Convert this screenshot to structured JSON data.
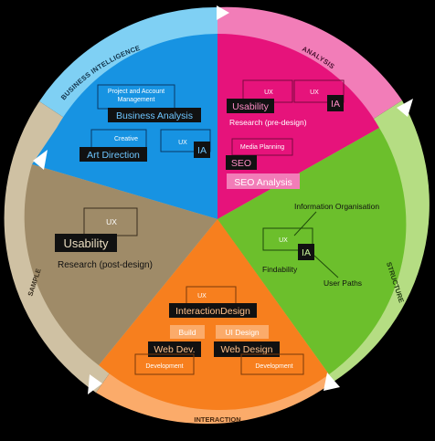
{
  "colors": {
    "business_intelligence": "#1793e2",
    "analysis": "#e6137b",
    "structure": "#6cbf2c",
    "interaction": "#f77f1e",
    "sample": "#9f8b68",
    "ring_blue": "#7fd0f4",
    "ring_pink": "#f27db8",
    "ring_green": "#b5dd83",
    "ring_orange": "#fbab6a",
    "ring_tan": "#cfc1a3"
  },
  "ring_labels": {
    "business_intelligence": "BUSINESS INTELLIGENCE",
    "analysis": "ANALYSIS",
    "structure": "STRUCTURE",
    "interaction": "INTERACTION",
    "sample": "SAMPLE"
  },
  "business_intelligence": {
    "project_mgmt_line1": "Project and Account",
    "project_mgmt_line2": "Management",
    "business_analysis": "Business Analysis",
    "creative": "Creative",
    "art_direction": "Art Direction",
    "ux": "UX",
    "ia": "IA"
  },
  "analysis": {
    "ux_left": "UX",
    "ux_right": "UX",
    "usability": "Usability",
    "ia": "IA",
    "research": "Research (pre-design)",
    "media_planning": "Media Planning",
    "seo": "SEO",
    "seo_analysis": "SEO Analysis"
  },
  "structure": {
    "information_organisation": "Information Organisation",
    "ux": "UX",
    "ia": "IA",
    "findability": "Findability",
    "user_paths": "User Paths"
  },
  "sample": {
    "ux": "UX",
    "usability": "Usability",
    "research": "Research (post-design)"
  },
  "interaction": {
    "ux": "UX",
    "interaction_design": "InteractionDesign",
    "build": "Build",
    "ui_design": "UI Design",
    "web_dev": "Web Dev.",
    "web_design": "Web Design",
    "development_left": "Development",
    "development_right": "Development"
  }
}
